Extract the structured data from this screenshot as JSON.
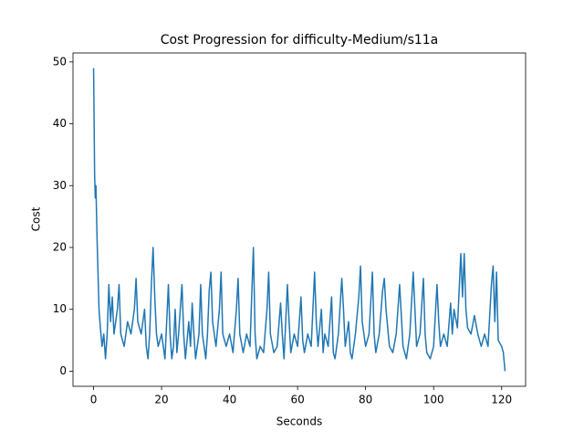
{
  "chart_data": {
    "type": "line",
    "title": "Cost Progression for difficulty-Medium/s11a",
    "x_label": "Seconds",
    "y_label": "Cost",
    "color": "#1f77b4",
    "x": [
      0,
      0.1,
      0.3,
      0.5,
      0.7,
      1.0,
      1.3,
      1.6,
      2,
      2.5,
      3,
      3.5,
      4,
      4.5,
      5,
      5.5,
      6,
      7,
      7.5,
      8,
      9,
      9.5,
      10,
      11,
      12,
      12.5,
      13,
      14,
      15,
      15.5,
      16,
      16.5,
      17,
      17.5,
      18,
      18.5,
      19,
      20,
      21,
      21.5,
      22,
      22.5,
      23,
      23.5,
      24,
      24.5,
      25,
      26,
      26.5,
      27,
      28,
      28.5,
      29,
      29.5,
      30,
      31,
      31.5,
      32,
      33,
      33.5,
      34,
      34.5,
      35,
      36,
      37,
      37.5,
      38,
      39,
      40,
      41,
      42,
      42.5,
      43,
      44,
      45,
      46,
      46.5,
      47,
      47.5,
      48,
      49,
      50,
      51,
      51.5,
      52,
      53,
      54,
      55,
      55.5,
      56,
      57,
      57.5,
      58,
      59,
      60,
      61,
      61.5,
      62,
      63,
      64,
      65,
      65.5,
      66,
      67,
      67.5,
      68,
      69,
      70,
      70.5,
      71,
      72,
      73,
      73.5,
      74,
      75,
      75.5,
      76,
      77,
      78,
      78.5,
      79,
      80,
      81,
      82,
      82.5,
      83,
      84,
      85,
      85.5,
      86,
      87,
      88,
      89,
      90,
      90.5,
      91,
      92,
      93,
      94,
      94.5,
      95,
      96,
      97,
      97.5,
      98,
      99,
      100,
      101,
      101.5,
      102,
      103,
      104,
      105,
      105.5,
      106,
      107,
      108,
      108.5,
      109,
      109.5,
      110,
      111,
      112,
      113,
      114,
      115,
      116,
      117,
      117.5,
      118,
      118.5,
      119,
      120,
      120.5,
      121
    ],
    "values": [
      49,
      44,
      32,
      28,
      30,
      22,
      16,
      10,
      7,
      4,
      6,
      2,
      6,
      14,
      8,
      12,
      6,
      10,
      14,
      6,
      4,
      6,
      8,
      6,
      10,
      15,
      8,
      6,
      10,
      4,
      2,
      6,
      14,
      20,
      12,
      6,
      4,
      6,
      2,
      8,
      14,
      6,
      2,
      4,
      10,
      3,
      6,
      14,
      6,
      2,
      8,
      4,
      11,
      6,
      2,
      6,
      14,
      6,
      2,
      6,
      13,
      16,
      8,
      4,
      10,
      16,
      6,
      4,
      6,
      3,
      10,
      15,
      6,
      3,
      6,
      4,
      12,
      20,
      6,
      2,
      4,
      3,
      10,
      16,
      6,
      3,
      4,
      11,
      6,
      2,
      14,
      8,
      3,
      6,
      4,
      12,
      5,
      3,
      6,
      4,
      16,
      8,
      4,
      10,
      3,
      6,
      4,
      12,
      3,
      2,
      6,
      15,
      10,
      4,
      8,
      3,
      2,
      6,
      12,
      17,
      8,
      4,
      6,
      16,
      6,
      3,
      6,
      13,
      15,
      10,
      4,
      3,
      6,
      14,
      9,
      4,
      2,
      6,
      16,
      10,
      4,
      6,
      15,
      6,
      3,
      2,
      4,
      14,
      8,
      4,
      6,
      4,
      11,
      6,
      10,
      7,
      19,
      12,
      19,
      10,
      7,
      6,
      9,
      6,
      4,
      6,
      4,
      14,
      17,
      8,
      16,
      5,
      4,
      3,
      0
    ],
    "xlim": [
      -6.05,
      127.05
    ],
    "ylim": [
      -2.45,
      51.45
    ],
    "xticks": [
      0,
      20,
      40,
      60,
      80,
      100,
      120
    ],
    "yticks": [
      0,
      10,
      20,
      30,
      40,
      50
    ]
  }
}
